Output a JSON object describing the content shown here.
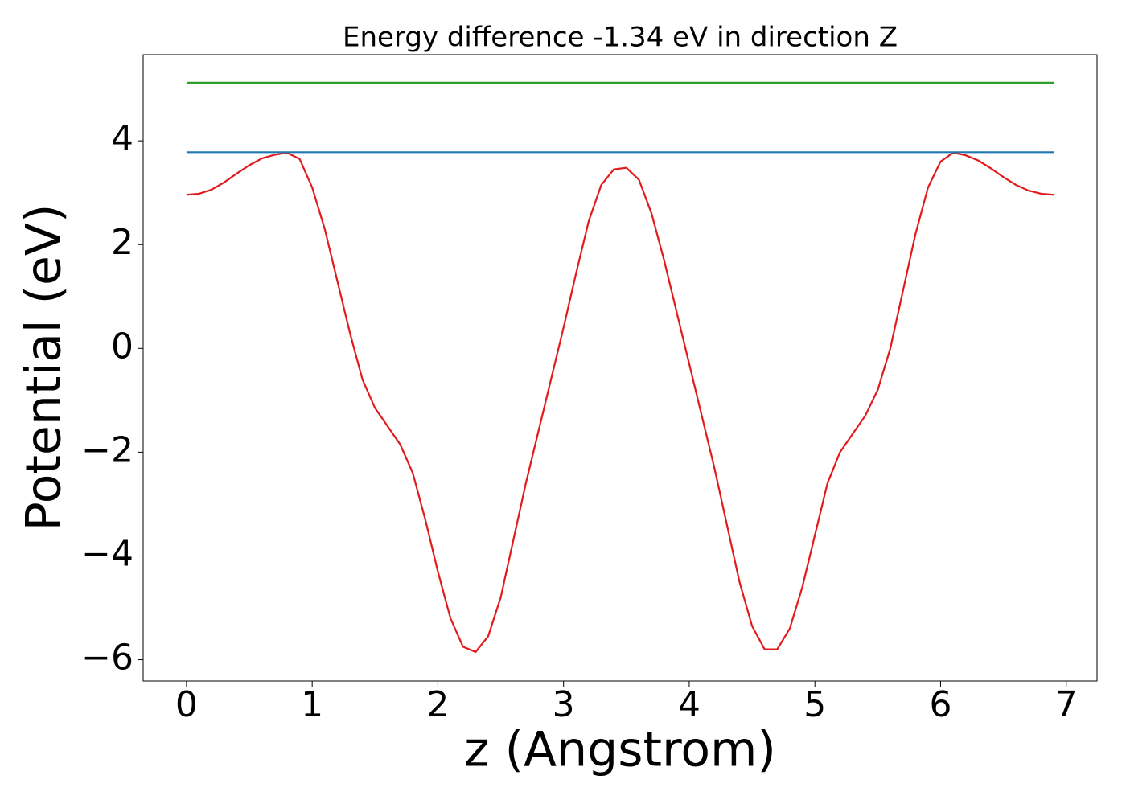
{
  "chart_data": {
    "type": "line",
    "title": "Energy difference -1.34 eV in direction Z",
    "xlabel": "z (Angstrom)",
    "ylabel": "Potential (eV)",
    "xlim": [
      -0.345,
      7.245
    ],
    "ylim": [
      -6.41,
      5.66
    ],
    "xticks": [
      0,
      1,
      2,
      3,
      4,
      5,
      6,
      7
    ],
    "yticks": [
      {
        "value": -6,
        "label": "−6"
      },
      {
        "value": -4,
        "label": "−4"
      },
      {
        "value": -2,
        "label": "−2"
      },
      0,
      2,
      4
    ],
    "grid": false,
    "series": [
      {
        "color": "#e31a1c",
        "x": [
          0,
          0.1,
          0.2,
          0.3,
          0.4,
          0.5,
          0.6,
          0.7,
          0.8,
          0.9,
          1.0,
          1.1,
          1.2,
          1.3,
          1.4,
          1.5,
          1.6,
          1.7,
          1.8,
          1.9,
          2.0,
          2.1,
          2.2,
          2.3,
          2.4,
          2.5,
          2.6,
          2.7,
          2.8,
          2.9,
          3.0,
          3.1,
          3.2,
          3.3,
          3.4,
          3.5,
          3.6,
          3.7,
          3.8,
          3.9,
          4.0,
          4.1,
          4.2,
          4.3,
          4.4,
          4.5,
          4.6,
          4.7,
          4.8,
          4.9,
          5.0,
          5.1,
          5.2,
          5.3,
          5.4,
          5.5,
          5.6,
          5.7,
          5.8,
          5.9,
          6.0,
          6.1,
          6.2,
          6.3,
          6.4,
          6.5,
          6.6,
          6.7,
          6.8,
          6.9
        ],
        "values": [
          2.96,
          2.98,
          3.06,
          3.2,
          3.37,
          3.53,
          3.66,
          3.73,
          3.77,
          3.65,
          3.1,
          2.3,
          1.3,
          0.3,
          -0.6,
          -1.15,
          -1.5,
          -1.85,
          -2.4,
          -3.3,
          -4.3,
          -5.2,
          -5.75,
          -5.85,
          -5.55,
          -4.8,
          -3.7,
          -2.6,
          -1.6,
          -0.6,
          0.4,
          1.45,
          2.45,
          3.15,
          3.45,
          3.48,
          3.25,
          2.6,
          1.7,
          0.7,
          -0.3,
          -1.3,
          -2.3,
          -3.4,
          -4.5,
          -5.35,
          -5.8,
          -5.8,
          -5.4,
          -4.6,
          -3.6,
          -2.6,
          -2.0,
          -1.65,
          -1.3,
          -0.8,
          0.0,
          1.1,
          2.2,
          3.1,
          3.6,
          3.77,
          3.72,
          3.62,
          3.47,
          3.3,
          3.15,
          3.04,
          2.98,
          2.96
        ]
      },
      {
        "color": "#1f77b4",
        "x": [
          0,
          6.9
        ],
        "values": [
          3.78,
          3.78
        ]
      },
      {
        "color": "#2ca02c",
        "x": [
          0,
          6.9
        ],
        "values": [
          5.12,
          5.12
        ]
      }
    ]
  }
}
